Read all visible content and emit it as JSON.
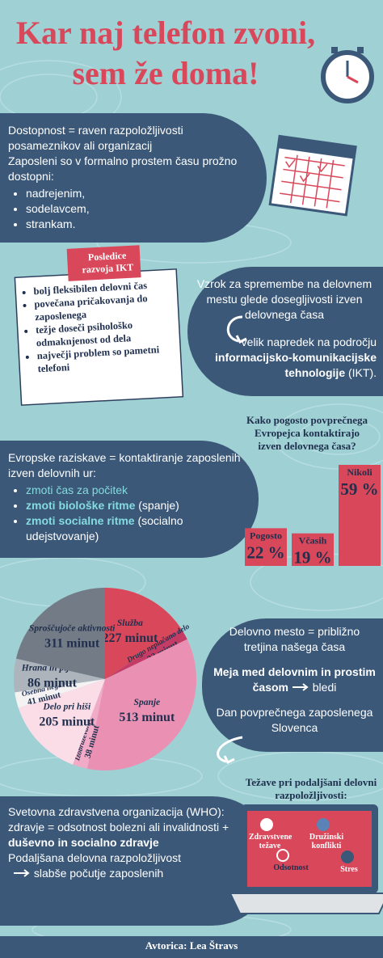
{
  "title": [
    "Kar naj telefon zvoni,",
    "sem že doma!"
  ],
  "access": {
    "definition": "Dostopnost = raven razpoložljivosti posameznikov ali organizacij",
    "intro": "Zaposleni so v formalno prostem času prožno dostopni:",
    "bullets": [
      "nadrejenim,",
      "sodelavcem,",
      "strankam."
    ]
  },
  "ikt": {
    "title": "Posledice razvoja IKT",
    "items": [
      "bolj fleksibilen delovni čas",
      "povečana pričakovanja do zaposlenega",
      "težje doseči psihološko odmaknjenost od dela",
      "največji problem so pametni telefoni"
    ]
  },
  "cause": {
    "text": "Vzrok za spremembe na delovnem mestu glede dosegljivosti izven delovnega časa",
    "result": [
      "velik napredek na področju",
      "informacijsko-komunikacijske tehnologije",
      "(IKT)."
    ]
  },
  "surveys": {
    "intro": "Evropske raziskave = kontaktiranje zaposlenih izven delovnih ur:",
    "items": [
      {
        "text": "zmoti čas za počitek"
      },
      {
        "text": "zmoti biološke ritme",
        "note": "(spanje)"
      },
      {
        "text": "zmoti socialne ritme",
        "note": "(socialno udejstvovanje)"
      }
    ]
  },
  "work": {
    "share": "Delovno mesto = približno tretjina našega časa",
    "boundary": "Meja med delovnim in prostim časom",
    "fades": "bledi",
    "day": "Dan povprečnega zaposlenega Slovenca"
  },
  "who": {
    "name": "Svetovna zdravstvena organizacija (WHO):",
    "health": "zdravje = odsotnost bolezni ali invalidnosti +",
    "health_bold": "duševno in socialno zdravje",
    "extended": "Podaljšana delovna razpoložljivost",
    "effect": "slabše počutje zaposlenih"
  },
  "problems": {
    "title": "Težave pri podaljšani delovni razpoložljivosti:",
    "items": [
      "Zdravstvene težave",
      "Družinski konflikti",
      "Odsotnost",
      "Stres"
    ]
  },
  "author": "Avtorica: Lea Štravs",
  "chart_data": [
    {
      "type": "bar",
      "title": "Kako pogosto povprečnega Evropejca kontaktirajo izven delovnega časa?",
      "categories": [
        "Pogosto",
        "Včasih",
        "Nikoli"
      ],
      "values": [
        22,
        19,
        59
      ],
      "value_labels": [
        "22 %",
        "19 %",
        "59 %"
      ],
      "color": "#d9475a"
    },
    {
      "type": "pie",
      "categories": [
        "Služba",
        "Drugo neplačano delo",
        "Spanje",
        "Izobraževanje",
        "Delo pri hiši",
        "Osebna nega",
        "Hrana in pijača",
        "Sproščujoče aktivnosti"
      ],
      "values": [
        227,
        32,
        513,
        38,
        205,
        41,
        86,
        311
      ],
      "value_labels": [
        "227 minut",
        "32 minut",
        "513 minut",
        "38 minut",
        "205 minut",
        "41 minut",
        "86 minut",
        "311 minut"
      ],
      "colors": [
        "#d9475a",
        "#c43c66",
        "#ea90b3",
        "#f2abc6",
        "#fbdde8",
        "#f4f2f3",
        "#aeb4bc",
        "#737b86"
      ]
    }
  ]
}
